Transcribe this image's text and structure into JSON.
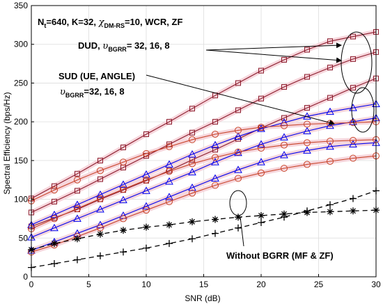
{
  "chart_data": {
    "type": "line",
    "xlabel": "SNR (dB)",
    "ylabel": "Spectral Efficiency (bps/Hz)",
    "xlim": [
      0,
      30
    ],
    "ylim": [
      0,
      350
    ],
    "xticks": [
      0,
      5,
      10,
      15,
      20,
      25,
      30
    ],
    "yticks": [
      0,
      50,
      100,
      150,
      200,
      250,
      300,
      350
    ],
    "grid": true,
    "x": [
      0,
      2,
      4,
      6,
      8,
      10,
      12,
      14,
      16,
      18,
      20,
      22,
      24,
      26,
      28,
      30
    ],
    "colors": {
      "dud": "#8b1a2b",
      "sud": "#0000ee",
      "sud_circle": "#c8442a",
      "baseline": "#000000",
      "shade": "#f6d6dc"
    },
    "series": [
      {
        "group": "DUD",
        "marker": "square",
        "color": "dud",
        "values": [
          101,
          117,
          133,
          150,
          167,
          184,
          200,
          217,
          234,
          250,
          266,
          280,
          293,
          304,
          310,
          316
        ]
      },
      {
        "group": "DUD",
        "marker": "square",
        "color": "dud",
        "values": [
          83,
          97,
          111,
          126,
          141,
          156,
          171,
          186,
          200,
          215,
          230,
          245,
          258,
          270,
          281,
          290
        ]
      },
      {
        "group": "DUD",
        "marker": "square",
        "color": "dud",
        "values": [
          65,
          76,
          87,
          100,
          112,
          124,
          137,
          151,
          164,
          178,
          192,
          205,
          218,
          231,
          244,
          256
        ]
      },
      {
        "group": "SUD",
        "marker": "triangle",
        "color": "sud",
        "values": [
          67,
          80,
          93,
          106,
          119,
          132,
          145,
          158,
          170,
          181,
          191,
          199,
          207,
          213,
          218,
          223
        ]
      },
      {
        "group": "SUD",
        "marker": "triangle",
        "color": "sud",
        "values": [
          51,
          63,
          75,
          87,
          99,
          111,
          123,
          135,
          148,
          160,
          171,
          180,
          188,
          195,
          200,
          205
        ]
      },
      {
        "group": "SUD",
        "marker": "triangle",
        "color": "sud",
        "values": [
          34,
          45,
          56,
          67,
          79,
          91,
          103,
          115,
          127,
          138,
          148,
          157,
          163,
          168,
          171,
          173
        ]
      },
      {
        "group": "SUD",
        "marker": "circle",
        "color": "sud_circle",
        "values": [
          98,
          112,
          125,
          137,
          148,
          159,
          168,
          177,
          184,
          189,
          193,
          195,
          197,
          198,
          199,
          200
        ]
      },
      {
        "group": "SUD",
        "marker": "circle",
        "color": "sud_circle",
        "values": [
          62,
          75,
          88,
          101,
          113,
          125,
          136,
          146,
          154,
          161,
          166,
          170,
          173,
          175,
          176,
          177
        ]
      },
      {
        "group": "SUD",
        "marker": "circle",
        "color": "sud_circle",
        "values": [
          32,
          41,
          52,
          63,
          75,
          86,
          97,
          108,
          118,
          127,
          134,
          140,
          145,
          149,
          153,
          156
        ]
      },
      {
        "group": "Without BGRR",
        "marker": "star",
        "color": "baseline",
        "dash": true,
        "values": [
          35,
          43,
          49,
          55,
          60,
          64,
          67,
          71,
          74,
          77,
          79,
          81,
          83,
          84,
          85,
          86
        ]
      },
      {
        "group": "Without BGRR",
        "marker": "plus",
        "color": "baseline",
        "dash": true,
        "values": [
          12,
          17,
          22,
          27,
          32,
          37,
          43,
          49,
          56,
          63,
          70,
          77,
          85,
          93,
          101,
          111
        ]
      }
    ],
    "annotations": {
      "params": "N$t=640, K=32, χ$DM-RS=10, WCR, ZF",
      "dud": "DUD, υ$BGRR= 32, 16, 8",
      "sud_line1": "SUD (UE, ANGLE)",
      "sud_line2": "υ$BGRR=32, 16, 8",
      "baseline": "Without BGRR (MF & ZF)"
    }
  },
  "annotation_text": {
    "params_n": "N",
    "params_n_sub": "t",
    "params_mid": "=640, K=32,",
    "params_chi": "χ",
    "params_chi_sub": "DM-RS",
    "params_tail": "=10, WCR, ZF",
    "dud_pre": "DUD,",
    "dud_ups": "υ",
    "dud_sub": "BGRR",
    "dud_tail": "= 32, 16, 8",
    "sud_line1": "SUD (UE, ANGLE)",
    "sud_ups": "υ",
    "sud_sub": "BGRR",
    "sud_tail": "=32, 16, 8",
    "baseline": "Without BGRR (MF & ZF)"
  }
}
